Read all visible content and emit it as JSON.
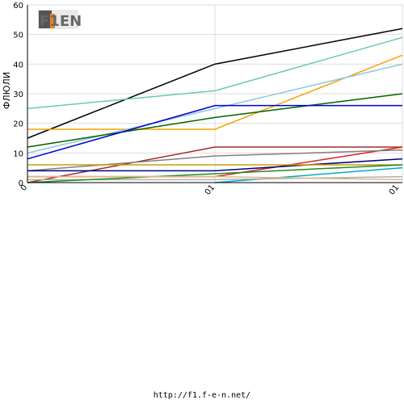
{
  "footer_url": "http://f1.f-e-n.net/",
  "logo_text": "F1EN",
  "chart_data": {
    "type": "line",
    "categories": [
      "0",
      "01",
      "01"
    ],
    "ylabel": "ФЛЮЛИ",
    "ylim": [
      0,
      60
    ],
    "yticks": [
      0,
      10,
      20,
      30,
      40,
      50,
      60
    ],
    "grid": true,
    "series": [
      {
        "color": "#000000",
        "values": [
          15,
          40,
          52
        ]
      },
      {
        "color": "#66ccb0",
        "values": [
          25,
          31,
          49
        ]
      },
      {
        "color": "#f5a400",
        "values": [
          18,
          18,
          43
        ]
      },
      {
        "color": "#8ec8e0",
        "values": [
          10,
          25,
          40
        ]
      },
      {
        "color": "#006400",
        "values": [
          12,
          22,
          30
        ]
      },
      {
        "color": "#0000cc",
        "values": [
          8,
          26,
          26
        ]
      },
      {
        "color": "#a52a2a",
        "values": [
          0,
          12,
          12
        ]
      },
      {
        "color": "#e02020",
        "values": [
          2,
          2,
          12
        ]
      },
      {
        "color": "#808080",
        "values": [
          4,
          9,
          11
        ]
      },
      {
        "color": "#000080",
        "values": [
          4,
          4,
          8
        ]
      },
      {
        "color": "#c8a000",
        "values": [
          6,
          6,
          6
        ]
      },
      {
        "color": "#00aacc",
        "values": [
          null,
          0,
          5
        ]
      },
      {
        "color": "#b0b0b0",
        "values": [
          1,
          1,
          2
        ]
      },
      {
        "color": "#228b22",
        "values": [
          0,
          3,
          6
        ]
      },
      {
        "color": "#deb887",
        "values": [
          2,
          2,
          1
        ]
      }
    ]
  }
}
